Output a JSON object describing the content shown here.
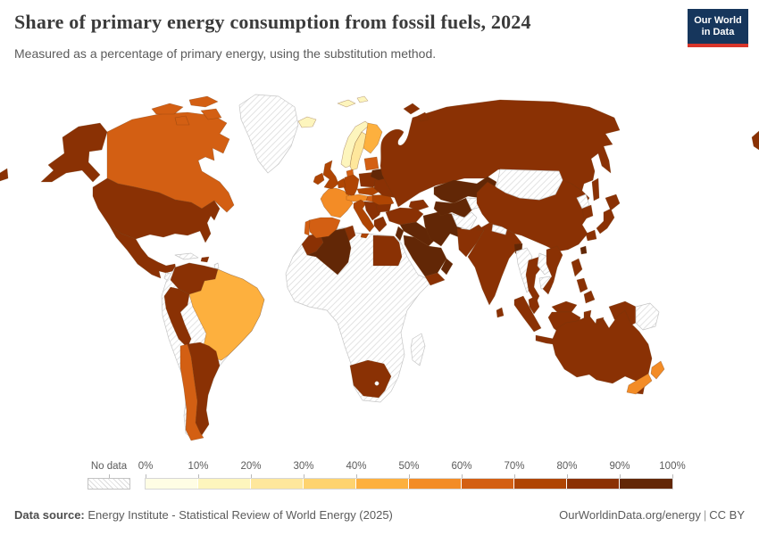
{
  "header": {
    "title": "Share of primary energy consumption from fossil fuels, 2024",
    "subtitle": "Measured as a percentage of primary energy, using the substitution method."
  },
  "logo": {
    "line1": "Our World",
    "line2": "in Data",
    "bg_color": "#16365c",
    "bar_color": "#d8352a"
  },
  "legend": {
    "no_data_label": "No data",
    "tick_labels": [
      "0%",
      "10%",
      "20%",
      "30%",
      "40%",
      "50%",
      "60%",
      "70%",
      "80%",
      "90%",
      "100%"
    ]
  },
  "footer": {
    "datasource_label": "Data source:",
    "datasource_text": " Energy Institute - Statistical Review of World Energy (2025)",
    "link_text": "OurWorldinData.org/energy",
    "separator": "|",
    "license_text": "CC BY"
  },
  "chart_data": {
    "type": "choropleth",
    "title": "Share of primary energy consumption from fossil fuels, 2024",
    "unit": "% of primary energy (substitution method)",
    "year": 2024,
    "legend_position": "bottom",
    "bin_ranges": [
      "0-10%",
      "10-20%",
      "20-30%",
      "30-40%",
      "40-50%",
      "50-60%",
      "60-70%",
      "70-80%",
      "80-90%",
      "90-100%"
    ],
    "bin_colors": [
      "#fffde4",
      "#fdf5bd",
      "#fee79c",
      "#fed36f",
      "#fdb03e",
      "#f38c26",
      "#d35f13",
      "#af4503",
      "#8a3104",
      "#622706"
    ],
    "no_data_fill": "hatch",
    "countries": [
      {
        "id": "usa",
        "name": "United States",
        "bin": 8
      },
      {
        "id": "canada",
        "name": "Canada",
        "bin": 6
      },
      {
        "id": "greenland",
        "name": "Greenland",
        "bin": -1
      },
      {
        "id": "mexico",
        "name": "Mexico",
        "bin": 8
      },
      {
        "id": "central-america",
        "name": "Central America",
        "bin": -1
      },
      {
        "id": "cuba",
        "name": "Cuba",
        "bin": -1
      },
      {
        "id": "hispaniola",
        "name": "Dominican Republic / Haiti",
        "bin": 8
      },
      {
        "id": "caribbean",
        "name": "Caribbean islands",
        "bin": -1
      },
      {
        "id": "colombia-venezuela",
        "name": "Colombia & Venezuela",
        "bin": 8
      },
      {
        "id": "ecuador-peru",
        "name": "Ecuador & Peru",
        "bin": 8
      },
      {
        "id": "brazil",
        "name": "Brazil",
        "bin": 4
      },
      {
        "id": "chile",
        "name": "Chile",
        "bin": 6
      },
      {
        "id": "argentina",
        "name": "Argentina",
        "bin": 8
      },
      {
        "id": "sa-interior",
        "name": "Bolivia, Paraguay, Uruguay, Guyanas",
        "bin": -1
      },
      {
        "id": "iceland",
        "name": "Iceland",
        "bin": 1
      },
      {
        "id": "svalbard",
        "name": "Svalbard",
        "bin": 1
      },
      {
        "id": "norway",
        "name": "Norway",
        "bin": 1
      },
      {
        "id": "sweden",
        "name": "Sweden",
        "bin": 2
      },
      {
        "id": "finland",
        "name": "Finland",
        "bin": 4
      },
      {
        "id": "denmark",
        "name": "Denmark",
        "bin": 6
      },
      {
        "id": "uk",
        "name": "United Kingdom",
        "bin": 7
      },
      {
        "id": "ireland",
        "name": "Ireland",
        "bin": 7
      },
      {
        "id": "france",
        "name": "France",
        "bin": 5
      },
      {
        "id": "spain",
        "name": "Spain",
        "bin": 6
      },
      {
        "id": "portugal",
        "name": "Portugal",
        "bin": 6
      },
      {
        "id": "germany",
        "name": "Germany",
        "bin": 7
      },
      {
        "id": "benelux",
        "name": "Netherlands & Belgium",
        "bin": 7
      },
      {
        "id": "poland",
        "name": "Poland",
        "bin": 8
      },
      {
        "id": "czech-slovakia",
        "name": "Czechia & Slovakia",
        "bin": 7
      },
      {
        "id": "austria-switzerland",
        "name": "Austria & Switzerland",
        "bin": 5
      },
      {
        "id": "hungary",
        "name": "Hungary",
        "bin": 6
      },
      {
        "id": "italy",
        "name": "Italy",
        "bin": 7
      },
      {
        "id": "balkans",
        "name": "Western Balkans",
        "bin": 8
      },
      {
        "id": "greece",
        "name": "Greece",
        "bin": 8
      },
      {
        "id": "romania",
        "name": "Romania",
        "bin": 7
      },
      {
        "id": "bulgaria",
        "name": "Bulgaria",
        "bin": 8
      },
      {
        "id": "ukraine",
        "name": "Ukraine",
        "bin": 8
      },
      {
        "id": "belarus",
        "name": "Belarus",
        "bin": 9
      },
      {
        "id": "baltics",
        "name": "Baltic states",
        "bin": 6
      },
      {
        "id": "russia",
        "name": "Russia",
        "bin": 8
      },
      {
        "id": "caucasus",
        "name": "Caucasus",
        "bin": 8
      },
      {
        "id": "turkey",
        "name": "Turkey",
        "bin": 8
      },
      {
        "id": "syria-iraq",
        "name": "Syria & Iraq",
        "bin": 9
      },
      {
        "id": "israel-jordan",
        "name": "Israel & Jordan",
        "bin": 9
      },
      {
        "id": "saudi-arabia",
        "name": "Saudi Arabia",
        "bin": 9
      },
      {
        "id": "yemen",
        "name": "Yemen",
        "bin": 8
      },
      {
        "id": "oman",
        "name": "Oman",
        "bin": 9
      },
      {
        "id": "iran",
        "name": "Iran",
        "bin": 9
      },
      {
        "id": "morocco",
        "name": "Morocco",
        "bin": 8
      },
      {
        "id": "algeria",
        "name": "Algeria",
        "bin": 9
      },
      {
        "id": "tunisia",
        "name": "Tunisia",
        "bin": 8
      },
      {
        "id": "libya",
        "name": "Libya",
        "bin": -1
      },
      {
        "id": "egypt",
        "name": "Egypt",
        "bin": 8
      },
      {
        "id": "africa-nodata",
        "name": "Sub-Saharan Africa",
        "bin": -1
      },
      {
        "id": "south-africa",
        "name": "South Africa",
        "bin": 8
      },
      {
        "id": "madagascar",
        "name": "Madagascar",
        "bin": -1
      },
      {
        "id": "kazakhstan",
        "name": "Kazakhstan",
        "bin": 9
      },
      {
        "id": "uzbekistan-turkmenistan",
        "name": "Uzbekistan & Turkmenistan",
        "bin": 9
      },
      {
        "id": "kyrgyzstan-tajikistan",
        "name": "Kyrgyzstan & Tajikistan",
        "bin": -1
      },
      {
        "id": "afghanistan",
        "name": "Afghanistan",
        "bin": -1
      },
      {
        "id": "pakistan",
        "name": "Pakistan",
        "bin": 8
      },
      {
        "id": "india",
        "name": "India",
        "bin": 8
      },
      {
        "id": "nepal",
        "name": "Nepal",
        "bin": -1
      },
      {
        "id": "bangladesh",
        "name": "Bangladesh",
        "bin": 9
      },
      {
        "id": "sri-lanka",
        "name": "Sri Lanka",
        "bin": 8
      },
      {
        "id": "china",
        "name": "China",
        "bin": 8
      },
      {
        "id": "mongolia",
        "name": "Mongolia",
        "bin": -1
      },
      {
        "id": "north-korea",
        "name": "North Korea",
        "bin": -1
      },
      {
        "id": "south-korea",
        "name": "South Korea",
        "bin": 8
      },
      {
        "id": "japan",
        "name": "Japan",
        "bin": 8
      },
      {
        "id": "taiwan",
        "name": "Taiwan",
        "bin": 9
      },
      {
        "id": "myanmar",
        "name": "Myanmar",
        "bin": -1
      },
      {
        "id": "thailand",
        "name": "Thailand",
        "bin": 8
      },
      {
        "id": "laos",
        "name": "Laos",
        "bin": -1
      },
      {
        "id": "cambodia",
        "name": "Cambodia",
        "bin": -1
      },
      {
        "id": "vietnam",
        "name": "Vietnam",
        "bin": 8
      },
      {
        "id": "malaysia",
        "name": "Malaysia",
        "bin": 8
      },
      {
        "id": "indonesia",
        "name": "Indonesia",
        "bin": 8
      },
      {
        "id": "papua-new-guinea",
        "name": "Papua New Guinea",
        "bin": -1
      },
      {
        "id": "philippines",
        "name": "Philippines",
        "bin": 8
      },
      {
        "id": "australia",
        "name": "Australia",
        "bin": 8
      },
      {
        "id": "new-zealand",
        "name": "New Zealand",
        "bin": 5
      }
    ]
  }
}
